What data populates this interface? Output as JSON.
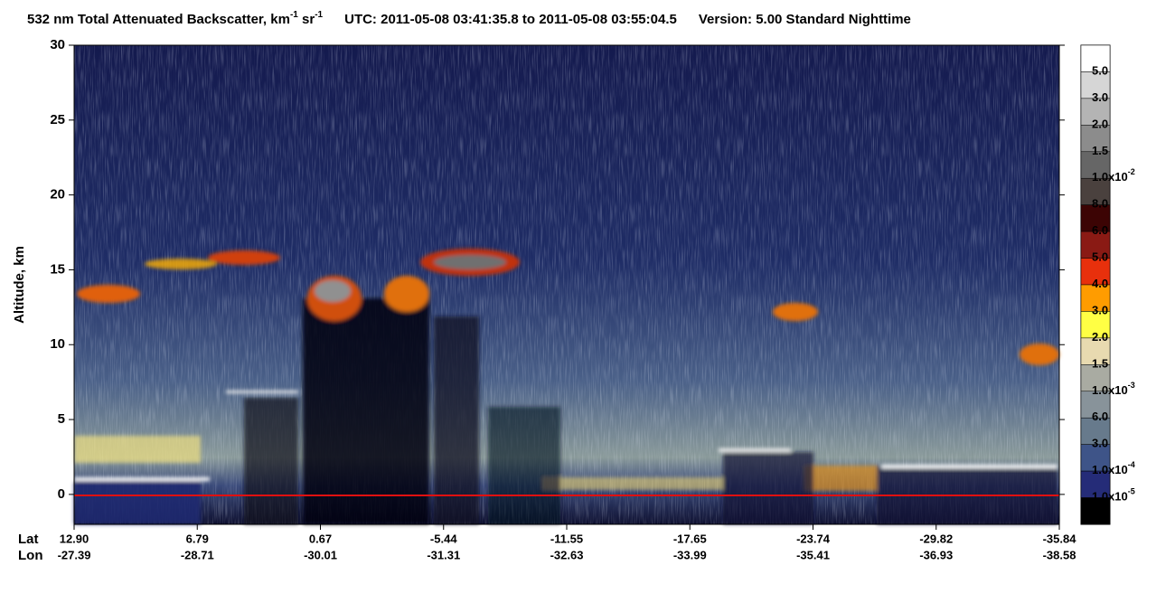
{
  "chart_data": {
    "type": "curtain",
    "title": [
      "532 nm Total Attenuated Backscatter, km",
      "-1",
      " sr",
      "-1",
      "UTC:  2011-05-08 03:41:35.8  to  2011-05-08 03:55:04.5",
      "Version: 5.00  Standard  Nighttime"
    ],
    "y_label": "Altitude, km",
    "ylim": [
      -2,
      30
    ],
    "yticks": [
      0,
      5,
      10,
      15,
      20,
      25,
      30
    ],
    "x_row_labels": [
      "Lat",
      "Lon"
    ],
    "xticks": [
      {
        "lat": "12.90",
        "lon": "-27.39"
      },
      {
        "lat": "6.79",
        "lon": "-28.71"
      },
      {
        "lat": "0.67",
        "lon": "-30.01"
      },
      {
        "lat": "-5.44",
        "lon": "-31.31"
      },
      {
        "lat": "-11.55",
        "lon": "-32.63"
      },
      {
        "lat": "-17.65",
        "lon": "-33.99"
      },
      {
        "lat": "-23.74",
        "lon": "-35.41"
      },
      {
        "lat": "-29.82",
        "lon": "-36.93"
      },
      {
        "lat": "-35.84",
        "lon": "-38.58"
      }
    ],
    "colorbar": {
      "colors": [
        "#ffffff",
        "#d6d6d6",
        "#b4b4b4",
        "#8c8c8c",
        "#666666",
        "#4a413e",
        "#3c0404",
        "#8a1a14",
        "#e8300c",
        "#ff9c00",
        "#ffff44",
        "#e8dab0",
        "#a9aba2",
        "#88939a",
        "#677a8c",
        "#3e5488",
        "#252c78",
        "#000000"
      ],
      "labels": [
        {
          "text": "5.0"
        },
        {
          "text": "3.0"
        },
        {
          "text": "2.0"
        },
        {
          "text": "1.5"
        },
        {
          "text": "1.0x10",
          "sup": "-2"
        },
        {
          "text": "8.0"
        },
        {
          "text": "6.0"
        },
        {
          "text": "5.0"
        },
        {
          "text": "4.0"
        },
        {
          "text": "3.0"
        },
        {
          "text": "2.0"
        },
        {
          "text": "1.5"
        },
        {
          "text": "1.0x10",
          "sup": "-3"
        },
        {
          "text": "6.0"
        },
        {
          "text": "3.0"
        },
        {
          "text": "1.0x10",
          "sup": "-4"
        },
        {
          "text": "1.0x10",
          "sup": "-5"
        }
      ]
    }
  }
}
